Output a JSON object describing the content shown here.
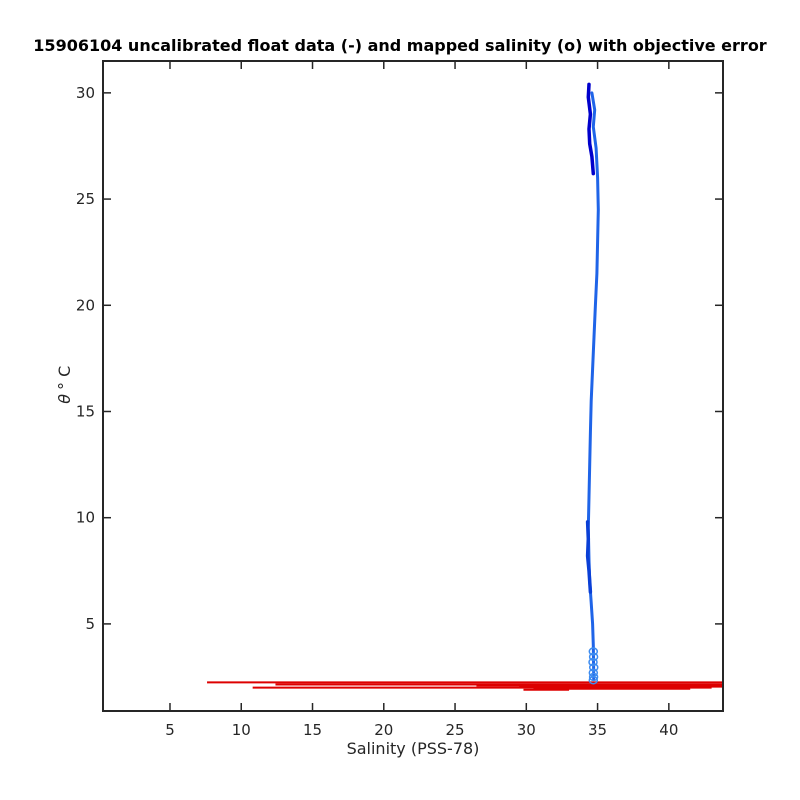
{
  "chart_data": {
    "type": "line",
    "title": "15906104 uncalibrated float data (-) and mapped salinity (o) with objective error",
    "xlabel": "Salinity (PSS-78)",
    "ylabel_symbol": "θ",
    "ylabel_unit": "° C",
    "xlim": [
      0.3,
      43.8
    ],
    "ylim": [
      0.9,
      31.5
    ],
    "xticks": [
      5,
      10,
      15,
      20,
      25,
      30,
      35,
      40
    ],
    "yticks": [
      5,
      10,
      15,
      20,
      25,
      30
    ],
    "grid": false,
    "colors": {
      "float_dark": "#0000cc",
      "float_mid": "#1f64e8",
      "mapped": "#3d8cf0",
      "error": "#dd0000",
      "axes": "#262626"
    },
    "series": [
      {
        "role": "float-profile-upper",
        "color": "#0000cc",
        "points": [
          [
            34.4,
            30.4
          ],
          [
            34.35,
            29.8
          ],
          [
            34.5,
            29.0
          ],
          [
            34.4,
            28.3
          ],
          [
            34.45,
            27.6
          ],
          [
            34.6,
            27.0
          ],
          [
            34.7,
            26.2
          ]
        ]
      },
      {
        "role": "float-profile-main",
        "color": "#1f64e8",
        "points": [
          [
            34.6,
            30.0
          ],
          [
            34.8,
            29.2
          ],
          [
            34.7,
            28.4
          ],
          [
            34.9,
            27.4
          ],
          [
            35.0,
            26.0
          ],
          [
            35.05,
            24.5
          ],
          [
            35.0,
            23.0
          ],
          [
            34.95,
            21.5
          ],
          [
            34.85,
            20.0
          ],
          [
            34.75,
            18.5
          ],
          [
            34.65,
            17.0
          ],
          [
            34.55,
            15.5
          ],
          [
            34.5,
            14.0
          ],
          [
            34.45,
            12.5
          ],
          [
            34.4,
            11.0
          ],
          [
            34.35,
            9.5
          ],
          [
            34.4,
            8.0
          ],
          [
            34.45,
            7.0
          ],
          [
            34.55,
            6.0
          ],
          [
            34.65,
            5.0
          ],
          [
            34.7,
            4.0
          ],
          [
            34.72,
            3.0
          ],
          [
            34.73,
            2.4
          ]
        ]
      },
      {
        "role": "float-profile-deep",
        "color": "#0a3fd6",
        "points": [
          [
            34.3,
            9.8
          ],
          [
            34.35,
            9.0
          ],
          [
            34.3,
            8.2
          ],
          [
            34.4,
            7.5
          ],
          [
            34.5,
            6.5
          ]
        ]
      },
      {
        "role": "mapped-salinity-markers",
        "color": "#3d8cf0",
        "points": [
          [
            34.7,
            3.7
          ],
          [
            34.72,
            3.45
          ],
          [
            34.68,
            3.2
          ],
          [
            34.73,
            2.95
          ],
          [
            34.7,
            2.7
          ],
          [
            34.72,
            2.5
          ],
          [
            34.7,
            2.35
          ]
        ]
      }
    ],
    "error_bars": [
      {
        "y": 2.25,
        "xmin": 7.6,
        "xmax": 43.8
      },
      {
        "y": 2.15,
        "xmin": 12.4,
        "xmax": 43.8
      },
      {
        "y": 2.1,
        "xmin": 26.5,
        "xmax": 43.8
      },
      {
        "y": 2.05,
        "xmin": 29.5,
        "xmax": 43.8
      },
      {
        "y": 2.0,
        "xmin": 10.8,
        "xmax": 43.0
      },
      {
        "y": 1.95,
        "xmin": 30.5,
        "xmax": 41.5
      },
      {
        "y": 1.9,
        "xmin": 29.8,
        "xmax": 33.0
      }
    ]
  }
}
